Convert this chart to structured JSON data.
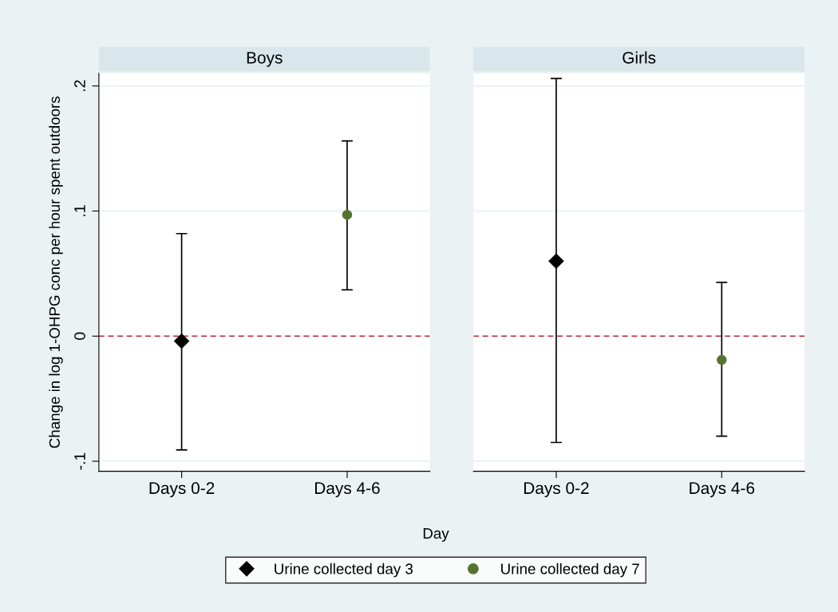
{
  "chart_data": [
    {
      "type": "scatter",
      "title": "Boys",
      "ylabel": "Change in log 1-OHPG conc per hour spent outdoors",
      "xlabel": "Day",
      "categories": [
        "Days 0-2",
        "Days 4-6"
      ],
      "series": [
        {
          "name": "Urine collected day 3",
          "color": "#000000",
          "marker": "diamond",
          "values": [
            -0.004,
            null
          ],
          "errors": [
            [
              -0.091,
              0.082
            ],
            null
          ]
        },
        {
          "name": "Urine collected day 7",
          "color": "#55752f",
          "marker": "circle",
          "values": [
            null,
            0.097
          ],
          "errors": [
            null,
            [
              0.037,
              0.156
            ]
          ]
        }
      ],
      "ylim": [
        -0.108,
        0.21
      ],
      "yticks": [
        {
          "value": -0.1,
          "label": "-.1"
        },
        0,
        {
          "value": 0.1,
          "label": ".1"
        },
        {
          "value": 0.2,
          "label": ".2"
        }
      ],
      "grid": "y",
      "ref_lines": [
        {
          "axis": "y",
          "value": 0,
          "color": "#c0283c",
          "line_style": "dashed"
        }
      ],
      "legend": "bottom"
    },
    {
      "type": "scatter",
      "title": "Girls",
      "categories": [
        "Days 0-2",
        "Days 4-6"
      ],
      "series": [
        {
          "color": "#000000",
          "marker": "diamond",
          "values": [
            0.06,
            null
          ],
          "errors": [
            [
              -0.085,
              0.206
            ],
            null
          ]
        },
        {
          "color": "#55752f",
          "marker": "circle",
          "values": [
            null,
            -0.019
          ],
          "errors": [
            null,
            [
              -0.08,
              0.043
            ]
          ]
        }
      ],
      "ylim": [
        -0.108,
        0.21
      ],
      "yticks": [
        {
          "value": -0.1,
          "label": null
        },
        {
          "value": 0,
          "label": null
        },
        {
          "value": 0.1,
          "label": null
        },
        {
          "value": 0.2,
          "label": null
        }
      ],
      "grid": "y",
      "ref_lines": [
        {
          "axis": "y",
          "value": 0,
          "color": "#c0283c",
          "line_style": "dashed"
        }
      ],
      "tick_labels": "x"
    }
  ]
}
